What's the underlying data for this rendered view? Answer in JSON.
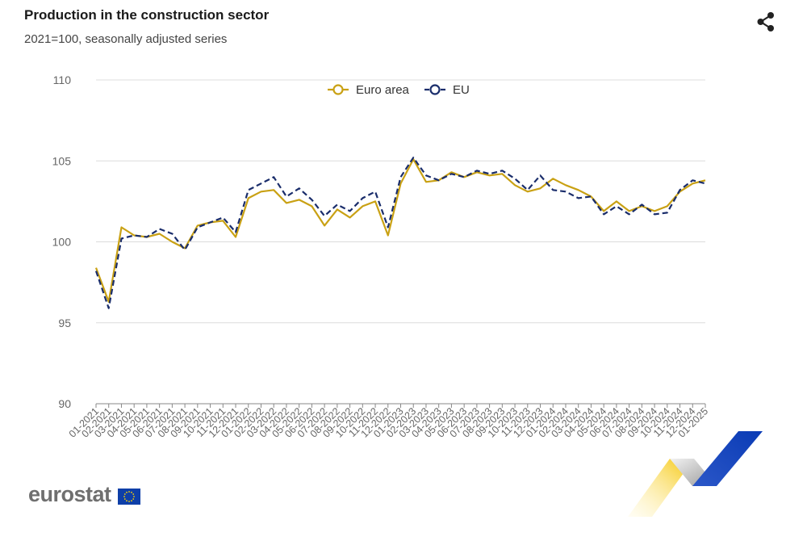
{
  "header": {
    "title": "Production in the construction sector",
    "subtitle": "2021=100, seasonally adjusted series"
  },
  "logo": {
    "text": "eurostat"
  },
  "icons": {
    "share": "share-icon",
    "flag": "eu-flag-icon"
  },
  "colors": {
    "euro_area": "#c9a114",
    "eu": "#1a2d6b",
    "grid": "#dcdcdc"
  },
  "chart_data": {
    "type": "line",
    "title": "Production in the construction sector",
    "subtitle": "2021=100, seasonally adjusted series",
    "xlabel": "",
    "ylabel": "",
    "ylim": [
      90,
      110
    ],
    "yticks": [
      90,
      95,
      100,
      105,
      110
    ],
    "grid": true,
    "legend": {
      "position": "top-center",
      "entries": [
        "Euro area",
        "EU"
      ]
    },
    "x": [
      "01-2021",
      "02-2021",
      "03-2021",
      "04-2021",
      "05-2021",
      "06-2021",
      "07-2021",
      "08-2021",
      "09-2021",
      "10-2021",
      "11-2021",
      "12-2021",
      "01-2022",
      "02-2022",
      "03-2022",
      "04-2022",
      "05-2022",
      "06-2022",
      "07-2022",
      "08-2022",
      "09-2022",
      "10-2022",
      "11-2022",
      "12-2022",
      "01-2023",
      "02-2023",
      "03-2023",
      "04-2023",
      "05-2023",
      "06-2023",
      "07-2023",
      "08-2023",
      "09-2023",
      "10-2023",
      "11-2023",
      "12-2023",
      "01-2024",
      "02-2024",
      "03-2024",
      "04-2024",
      "05-2024",
      "06-2024",
      "07-2024",
      "08-2024",
      "09-2024",
      "10-2024",
      "11-2024",
      "12-2024",
      "01-2025"
    ],
    "series": [
      {
        "name": "Euro area",
        "style": "solid",
        "color": "#c9a114",
        "values": [
          98.4,
          96.3,
          100.9,
          100.4,
          100.3,
          100.5,
          100.0,
          99.6,
          101.0,
          101.2,
          101.3,
          100.3,
          102.7,
          103.1,
          103.2,
          102.4,
          102.6,
          102.2,
          101.0,
          102.0,
          101.5,
          102.2,
          102.5,
          100.4,
          103.6,
          105.1,
          103.7,
          103.8,
          104.3,
          104.0,
          104.3,
          104.1,
          104.2,
          103.5,
          103.1,
          103.3,
          103.9,
          103.5,
          103.2,
          102.8,
          101.9,
          102.5,
          101.9,
          102.2,
          101.9,
          102.2,
          103.1,
          103.6,
          103.8
        ]
      },
      {
        "name": "EU",
        "style": "dashed",
        "color": "#1a2d6b",
        "values": [
          98.2,
          95.9,
          100.2,
          100.4,
          100.3,
          100.8,
          100.5,
          99.5,
          100.9,
          101.2,
          101.5,
          100.6,
          103.2,
          103.6,
          104.0,
          102.8,
          103.3,
          102.6,
          101.6,
          102.3,
          101.9,
          102.7,
          103.1,
          100.9,
          104.0,
          105.2,
          104.1,
          103.8,
          104.2,
          104.0,
          104.4,
          104.2,
          104.4,
          103.9,
          103.2,
          104.1,
          103.2,
          103.1,
          102.7,
          102.8,
          101.7,
          102.2,
          101.7,
          102.3,
          101.7,
          101.8,
          103.2,
          103.8,
          103.6
        ]
      }
    ]
  }
}
